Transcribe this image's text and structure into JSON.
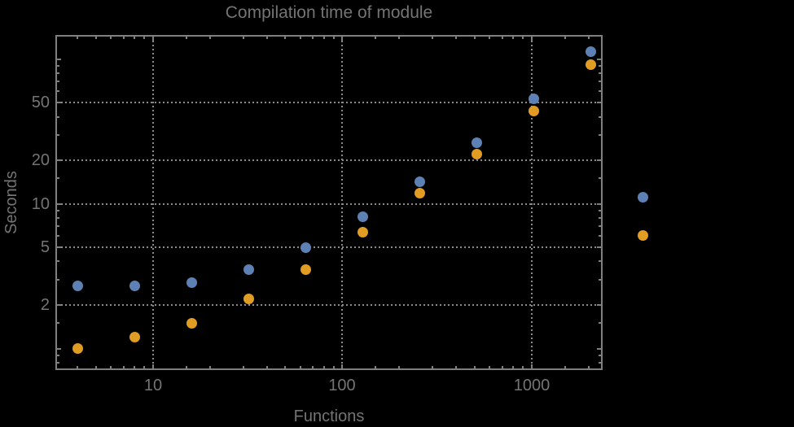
{
  "title": "Compilation time of module",
  "colors": {
    "background": "#000000",
    "text": "#747474",
    "frame": "#7f7f7f",
    "grid": "#8a8a8a",
    "series_blue": "#5e81b5",
    "series_orange": "#e19c24"
  },
  "chart_data": {
    "type": "scatter",
    "title": "Compilation time of module",
    "xlabel": "Functions",
    "ylabel": "Seconds",
    "x_scale": "log",
    "y_scale": "log",
    "x_range": [
      3.05,
      2370
    ],
    "y_range": [
      0.71,
      147
    ],
    "grid": "dotted, at labeled major ticks only",
    "legend_position": "right-outside",
    "x": [
      4,
      8,
      16,
      32,
      64,
      128,
      256,
      512,
      1024,
      2048
    ],
    "series": [
      {
        "name": "series-1",
        "color": "#5e81b5",
        "values": [
          2.7,
          2.7,
          2.85,
          3.5,
          5.0,
          8.1,
          14.3,
          26.5,
          53,
          113
        ]
      },
      {
        "name": "series-2",
        "color": "#e19c24",
        "values": [
          1.0,
          1.2,
          1.5,
          2.2,
          3.5,
          6.4,
          11.8,
          22,
          44,
          92
        ]
      }
    ],
    "x_ticks": {
      "labeled": [
        10,
        100,
        1000
      ],
      "labels": [
        "10",
        "100",
        "1000"
      ],
      "minor": [
        4,
        5,
        6,
        7,
        8,
        9,
        15,
        20,
        30,
        40,
        50,
        60,
        70,
        80,
        90,
        150,
        200,
        300,
        400,
        500,
        600,
        700,
        800,
        900,
        1500,
        2000
      ]
    },
    "y_ticks": {
      "labeled": [
        2,
        5,
        10,
        20,
        50
      ],
      "labels": [
        "2",
        "5",
        "10",
        "20",
        "50"
      ],
      "major_unlabeled": [
        1,
        100
      ],
      "minor": [
        0.8,
        0.9,
        1.5,
        3,
        4,
        6,
        7,
        8,
        9,
        15,
        30,
        40,
        60,
        70,
        80,
        90
      ]
    }
  },
  "legend": {
    "markers": [
      {
        "name": "legend-marker-blue",
        "color": "#5e81b5",
        "label": ""
      },
      {
        "name": "legend-marker-orange",
        "color": "#e19c24",
        "label": ""
      }
    ]
  }
}
